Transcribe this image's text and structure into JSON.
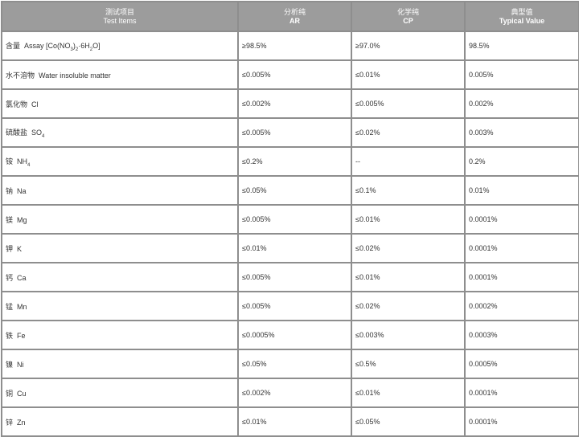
{
  "header": [
    {
      "zh": "测试项目",
      "en": "Test Items"
    },
    {
      "zh": "分析纯",
      "en": "AR"
    },
    {
      "zh": "化学纯",
      "en": "CP"
    },
    {
      "zh": "典型值",
      "en": "Typical Value"
    }
  ],
  "rows": [
    {
      "zh": "含量",
      "en": "Assay [Co(NO",
      "sub1": "3",
      ")": ")",
      "sub2": "2",
      "tail": "·6H",
      "sub3": "2",
      "end": "O]",
      "ar": "≥98.5%",
      "cp": "≥97.0%",
      "typ": "98.5%"
    },
    {
      "zh": "水不溶物",
      "en": "Water insoluble matter",
      "ar": "≤0.005%",
      "cp": "≤0.01%",
      "typ": "0.005%"
    },
    {
      "zh": "氯化物",
      "en": "Cl",
      "ar": "≤0.002%",
      "cp": "≤0.005%",
      "typ": "0.002%"
    },
    {
      "zh": "硫酸盐",
      "en": "SO",
      "sub": "4",
      "ar": "≤0.005%",
      "cp": "≤0.02%",
      "typ": "0.003%"
    },
    {
      "zh": "铵",
      "en": "NH",
      "sub": "4",
      "ar": "≤0.2%",
      "cp": "--",
      "typ": "0.2%"
    },
    {
      "zh": "钠",
      "en": "Na",
      "ar": "≤0.05%",
      "cp": "≤0.1%",
      "typ": "0.01%"
    },
    {
      "zh": "镁",
      "en": "Mg",
      "ar": "≤0.005%",
      "cp": "≤0.01%",
      "typ": "0.0001%"
    },
    {
      "zh": "钾",
      "en": "K",
      "ar": "≤0.01%",
      "cp": "≤0.02%",
      "typ": "0.0001%"
    },
    {
      "zh": "钙",
      "en": "Ca",
      "ar": "≤0.005%",
      "cp": "≤0.01%",
      "typ": "0.0001%"
    },
    {
      "zh": "锰",
      "en": "Mn",
      "ar": "≤0.005%",
      "cp": "≤0.02%",
      "typ": "0.0002%"
    },
    {
      "zh": "铁",
      "en": "Fe",
      "ar": "≤0.0005%",
      "cp": "≤0.003%",
      "typ": "0.0003%"
    },
    {
      "zh": "镍",
      "en": "Ni",
      "ar": "≤0.05%",
      "cp": "≤0.5%",
      "typ": "0.0005%"
    },
    {
      "zh": "铜",
      "en": "Cu",
      "ar": "≤0.002%",
      "cp": "≤0.01%",
      "typ": "0.0001%"
    },
    {
      "zh": "锌",
      "en": "Zn",
      "ar": "≤0.01%",
      "cp": "≤0.05%",
      "typ": "0.0001%"
    }
  ]
}
